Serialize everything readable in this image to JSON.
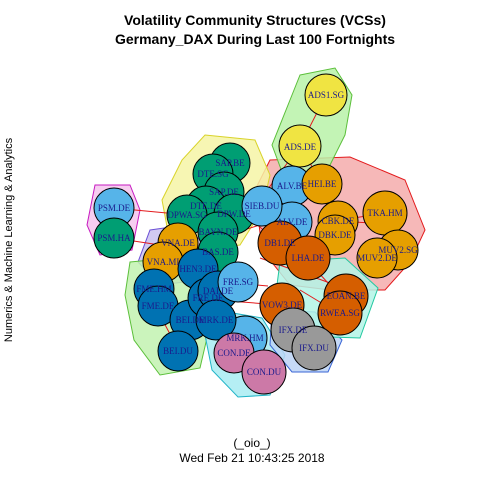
{
  "title": {
    "line1": "Volatility Community Structures (VCSs)",
    "line2": "Germany_DAX During Last 100 Fortnights"
  },
  "side_label": "Numerics & Machine Learning & Analytics",
  "footer": {
    "line1": "(_oio_)",
    "line2": "Wed Feb 21 10:43:25 2018"
  },
  "colors": {
    "yellow": "#f0e442",
    "blue": "#56b4e9",
    "orange": "#e69f00",
    "green": "#009e73",
    "navy": "#0072b2",
    "vermilion": "#d55e00",
    "pink": "#cc79a7",
    "grey": "#999999",
    "edge": "#e31a1c"
  },
  "nodes": [
    {
      "id": "ADS1.SG",
      "color": "yellow"
    },
    {
      "id": "ADS.DE",
      "color": "yellow"
    },
    {
      "id": "SAP.BE",
      "color": "green"
    },
    {
      "id": "DTE.SG",
      "color": "green"
    },
    {
      "id": "SAP.DE",
      "color": "green"
    },
    {
      "id": "DTE.DE",
      "color": "green"
    },
    {
      "id": "DPWA.SG",
      "color": "green"
    },
    {
      "id": "DPW.DE",
      "color": "green"
    },
    {
      "id": "BAYN.DE",
      "color": "green"
    },
    {
      "id": "BAS.DE",
      "color": "green"
    },
    {
      "id": "PSM.DE",
      "color": "blue"
    },
    {
      "id": "PSM.HA",
      "color": "green"
    },
    {
      "id": "VNA.DE",
      "color": "orange"
    },
    {
      "id": "VNA.MI",
      "color": "orange"
    },
    {
      "id": "FME.HM",
      "color": "navy"
    },
    {
      "id": "FME.DE",
      "color": "navy"
    },
    {
      "id": "BEI.DE",
      "color": "navy"
    },
    {
      "id": "BEI.DU",
      "color": "navy"
    },
    {
      "id": "HEN3.DE",
      "color": "navy"
    },
    {
      "id": "FRE.DE",
      "color": "navy"
    },
    {
      "id": "DAI.DE",
      "color": "navy"
    },
    {
      "id": "FRE.SG",
      "color": "blue"
    },
    {
      "id": "ALV.BE",
      "color": "blue"
    },
    {
      "id": "ALV.DE",
      "color": "blue"
    },
    {
      "id": "SIEB.DU",
      "color": "blue"
    },
    {
      "id": "MRK.HM",
      "color": "blue"
    },
    {
      "id": "MRK.DE",
      "color": "navy"
    },
    {
      "id": "HEI.BE",
      "color": "orange"
    },
    {
      "id": "CBK.DE",
      "color": "orange"
    },
    {
      "id": "TKA.HM",
      "color": "orange"
    },
    {
      "id": "DBK.DE",
      "color": "orange"
    },
    {
      "id": "MUV2.SG",
      "color": "orange"
    },
    {
      "id": "MUV2.DE",
      "color": "orange"
    },
    {
      "id": "DB1.DE",
      "color": "vermilion"
    },
    {
      "id": "LHA.DE",
      "color": "vermilion"
    },
    {
      "id": "EOAN.BE",
      "color": "vermilion"
    },
    {
      "id": "RWEA.SG",
      "color": "vermilion"
    },
    {
      "id": "VOW3.DE",
      "color": "vermilion"
    },
    {
      "id": "IFX.DE",
      "color": "grey"
    },
    {
      "id": "IFX.DU",
      "color": "grey"
    },
    {
      "id": "CON.DE",
      "color": "pink"
    },
    {
      "id": "CON.DU",
      "color": "pink"
    }
  ]
}
